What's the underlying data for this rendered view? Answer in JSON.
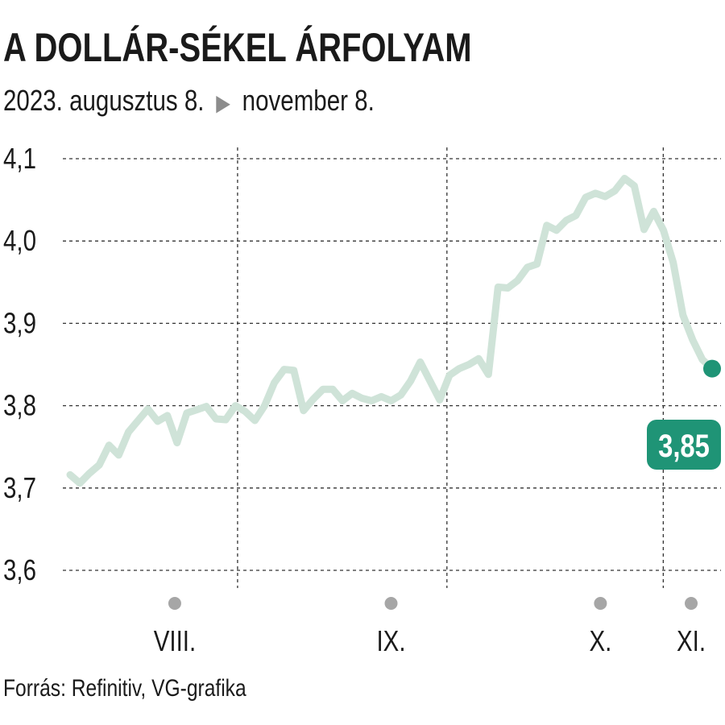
{
  "title": "A DOLLÁR-SÉKEL ÁRFOLYAM",
  "subtitle": {
    "start": "2023. augusztus 8.",
    "end": "november 8.",
    "arrow_icon": "triangle-right-icon"
  },
  "source": "Forrás: Refinitiv, VG-grafika",
  "colors": {
    "line": "#cfe3d8",
    "accent": "#1f9476",
    "grid": "#333333",
    "month_dot": "#a6a6a6"
  },
  "chart_data": {
    "type": "line",
    "title": "A DOLLÁR-SÉKEL ÁRFOLYAM",
    "xlabel": "",
    "ylabel": "",
    "ylim": [
      3.6,
      4.1
    ],
    "yticks": [
      3.6,
      3.7,
      3.8,
      3.9,
      4.0,
      4.1
    ],
    "ytick_labels": [
      "3,6",
      "3,7",
      "3,8",
      "3,9",
      "4,0",
      "4,1"
    ],
    "grid": true,
    "x_start": "2023-08-08",
    "x_end": "2023-11-08",
    "month_ticks": [
      {
        "label": "VIII.",
        "date": "2023-08-23"
      },
      {
        "label": "IX.",
        "date": "2023-09-23"
      },
      {
        "label": "X.",
        "date": "2023-10-23"
      },
      {
        "label": "XI.",
        "date": "2023-11-05"
      }
    ],
    "month_boundaries": [
      "2023-09-01",
      "2023-10-01",
      "2023-11-01"
    ],
    "last_value_label": "3,85",
    "series": [
      {
        "values": [
          3.716,
          3.706,
          3.718,
          3.728,
          3.752,
          3.74,
          3.768,
          3.782,
          3.796,
          3.781,
          3.788,
          3.755,
          3.791,
          3.795,
          3.799,
          3.784,
          3.783,
          3.8,
          3.793,
          3.782,
          3.8,
          3.828,
          3.844,
          3.843,
          3.794,
          3.808,
          3.82,
          3.82,
          3.806,
          3.815,
          3.809,
          3.806,
          3.811,
          3.806,
          3.813,
          3.83,
          3.853,
          3.83,
          3.807,
          3.837,
          3.845,
          3.85,
          3.857,
          3.838,
          3.944,
          3.943,
          3.952,
          3.968,
          3.972,
          4.019,
          4.013,
          4.025,
          4.031,
          4.053,
          4.058,
          4.054,
          4.061,
          4.076,
          4.067,
          4.014,
          4.036,
          4.013,
          3.974,
          3.91,
          3.88,
          3.856,
          3.845
        ]
      }
    ]
  }
}
